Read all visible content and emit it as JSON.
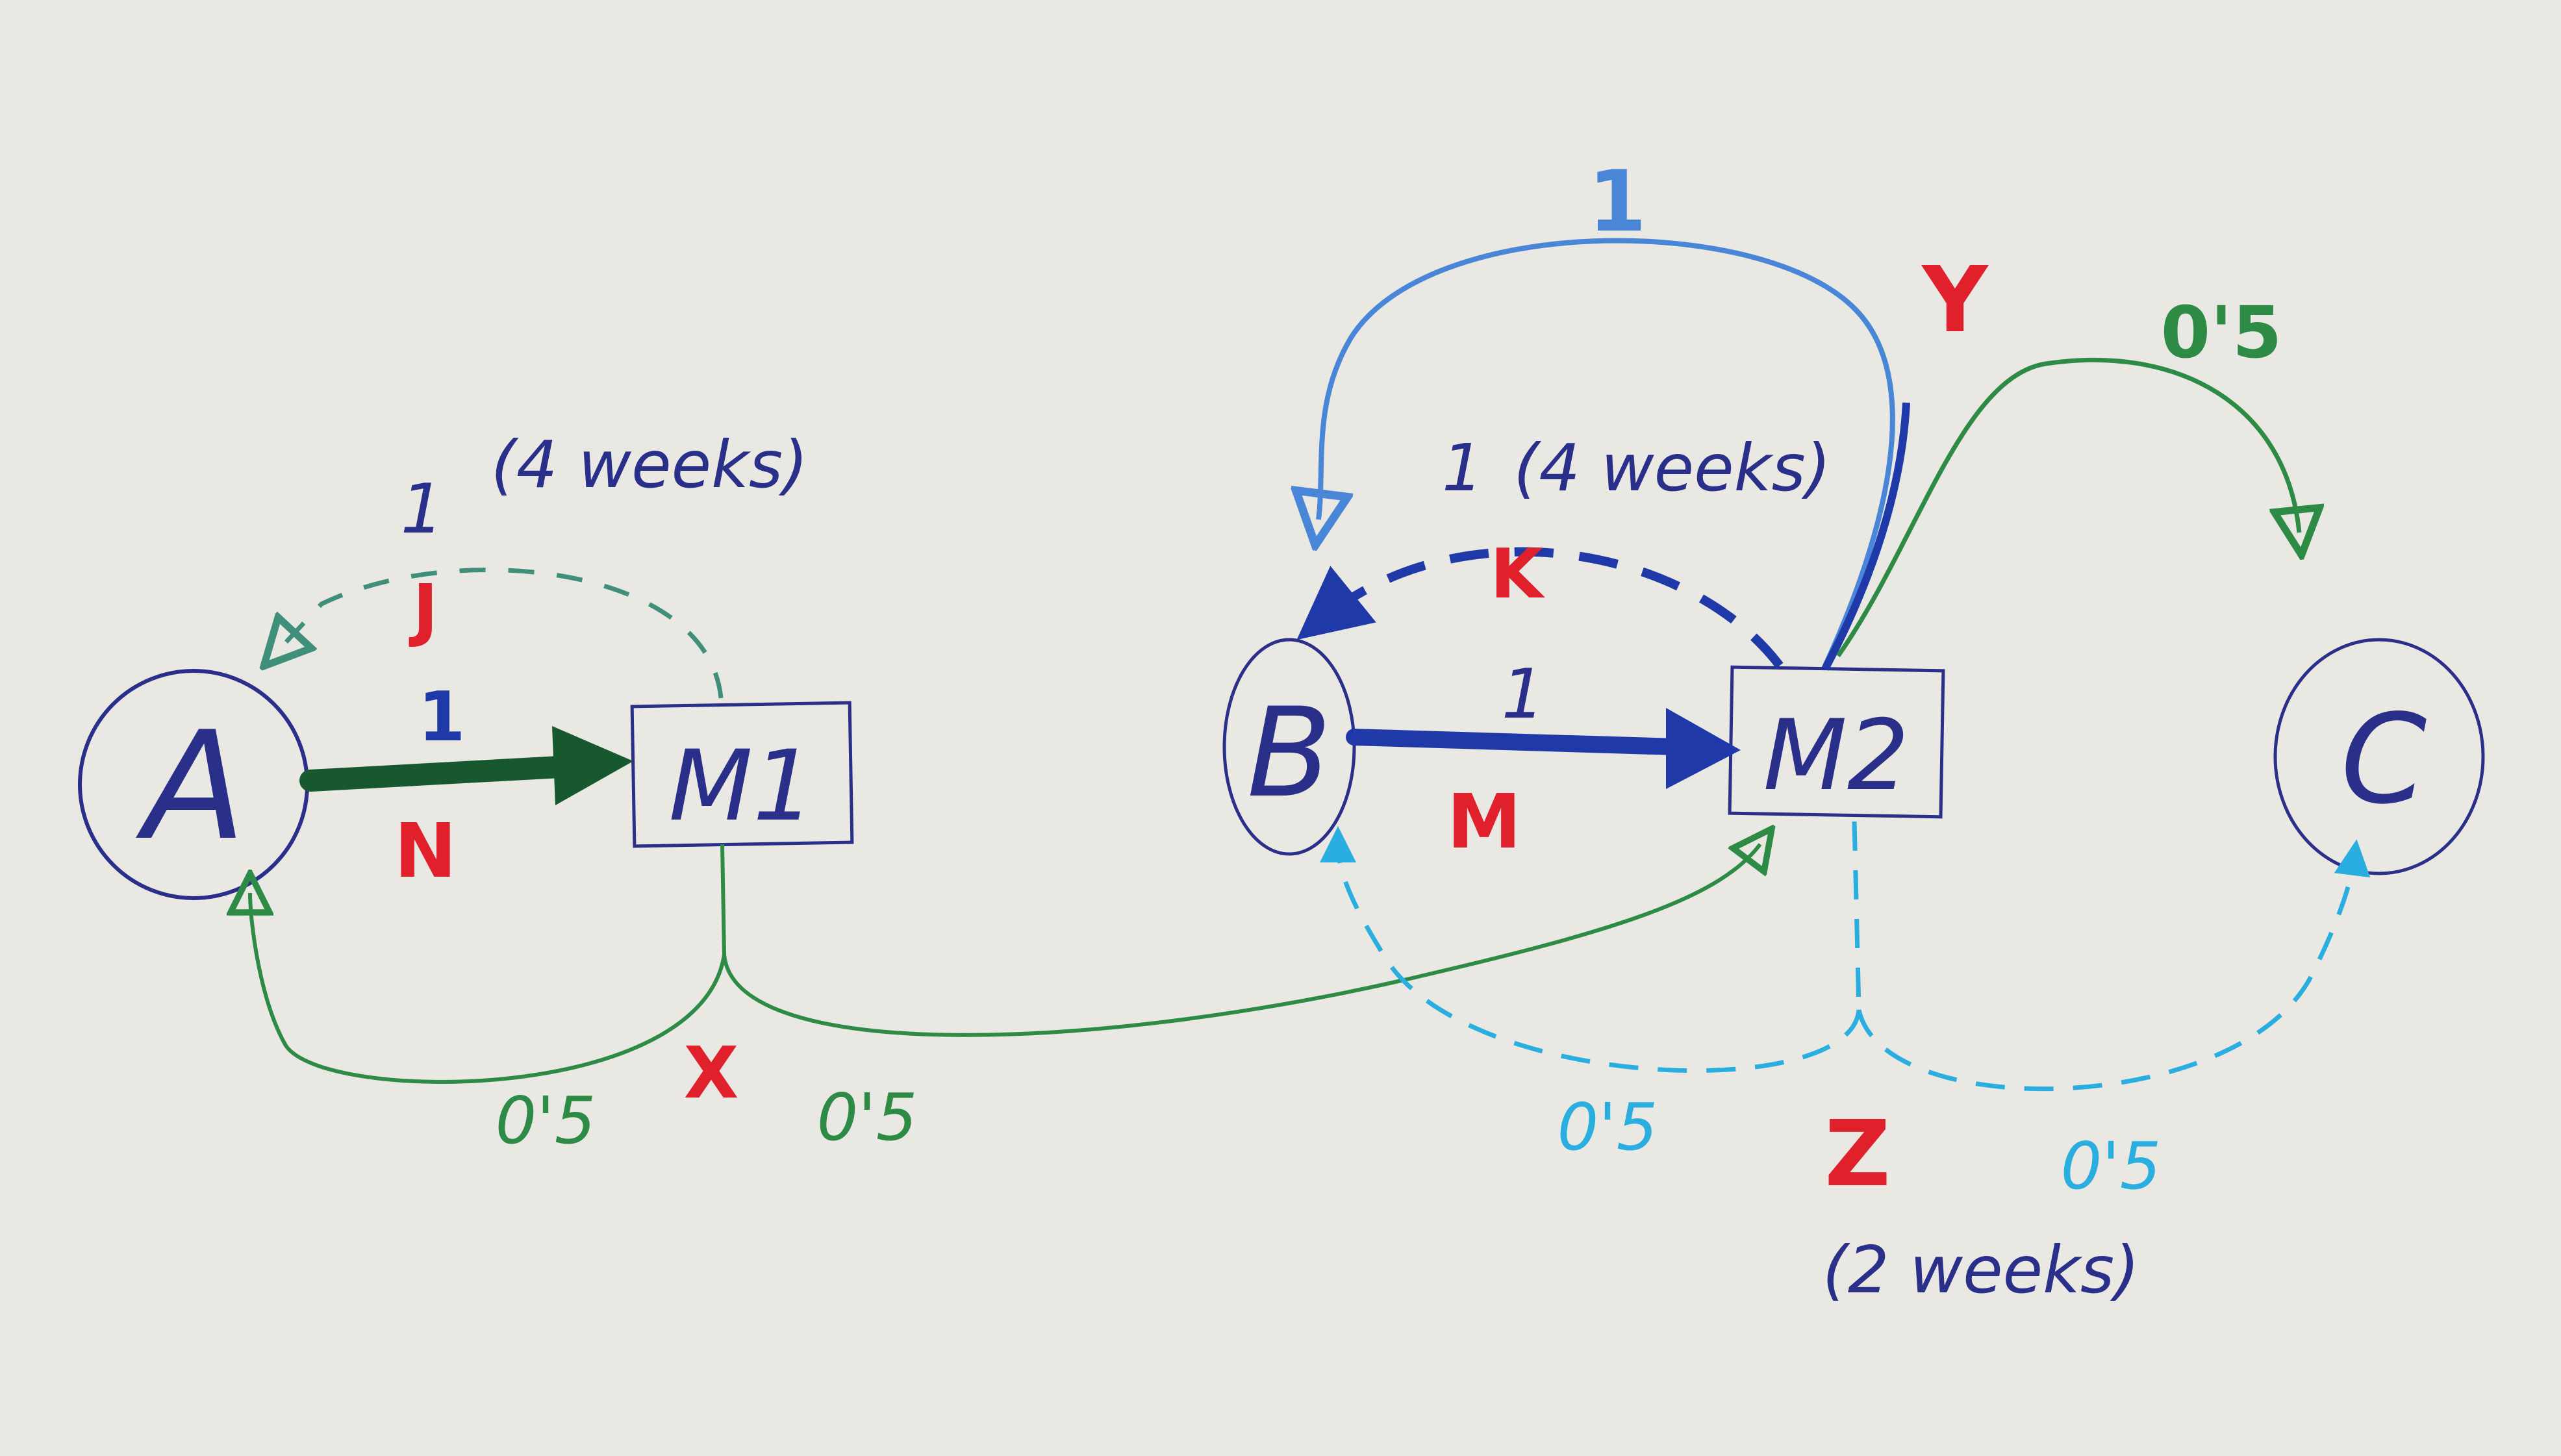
{
  "nodes": {
    "a": "A",
    "m1": "M1",
    "b": "B",
    "m2": "M2",
    "c": "C"
  },
  "edge_labels": {
    "n_weight": "1",
    "n": "N",
    "j_weight": "1",
    "j_time": "(4 weeks)",
    "j": "J",
    "x": "X",
    "x_left": "0'5",
    "x_right": "0'5",
    "m_weight": "1",
    "m": "M",
    "k_weight": "1",
    "k_time": "(4 weeks)",
    "k": "K",
    "y_weight": "1",
    "y": "Y",
    "y_branch": "0'5",
    "z": "Z",
    "z_left": "0'5",
    "z_right": "0'5",
    "z_time": "(2 weeks)"
  },
  "colors": {
    "paper": "#e9e8e3",
    "navy": "#2a2f8a",
    "dark_blue": "#1f3aa8",
    "light_blue": "#4a86d8",
    "cyan": "#2aaee0",
    "green": "#2e8b46",
    "dark_green": "#18582e",
    "red": "#e0202a",
    "teal": "#3f8f7a"
  }
}
